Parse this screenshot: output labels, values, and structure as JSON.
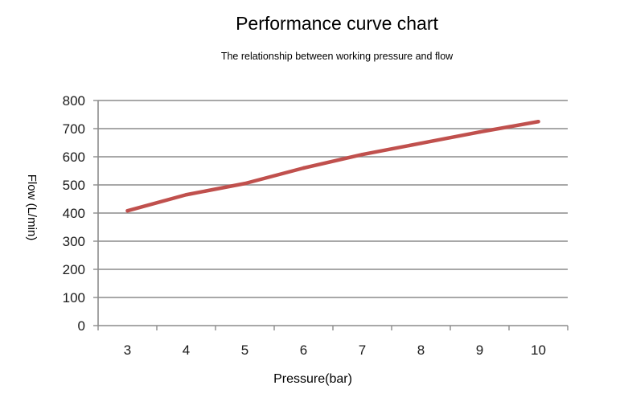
{
  "chart_data": {
    "type": "line",
    "title": "Performance curve chart",
    "subtitle": "The relationship between working pressure and flow",
    "xlabel": "Pressure(bar)",
    "ylabel": "Flow (L/min)",
    "x": [
      3,
      4,
      5,
      6,
      7,
      8,
      9,
      10
    ],
    "series": [
      {
        "values": [
          408,
          465,
          505,
          560,
          608,
          648,
          688,
          725
        ],
        "color": "#c0504d"
      }
    ],
    "ylim": [
      0,
      800
    ],
    "yticks": [
      0,
      100,
      200,
      300,
      400,
      500,
      600,
      700,
      800
    ],
    "grid": true,
    "legend": "none"
  }
}
